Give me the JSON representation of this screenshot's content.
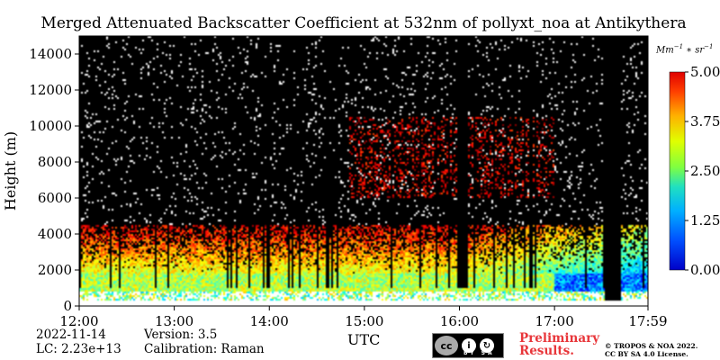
{
  "chart_data": {
    "type": "heatmap",
    "title": "Merged Attenuated Backscatter Coefficient at 532nm of pollyxt_noa at Antikythera",
    "xlabel": "UTC",
    "ylabel": "Height (m)",
    "x_ticks": [
      "12:00",
      "13:00",
      "14:00",
      "15:00",
      "16:00",
      "17:00",
      "17:59"
    ],
    "y_ticks": [
      "0",
      "2000",
      "4000",
      "6000",
      "8000",
      "10000",
      "12000",
      "14000"
    ],
    "xlim": [
      "12:00",
      "17:59"
    ],
    "ylim": [
      0,
      15000
    ],
    "colorbar": {
      "label": "Mm^-1 * sr^-1",
      "ticks": [
        "0.00",
        "1.25",
        "2.50",
        "3.75",
        "5.00"
      ],
      "range": [
        0,
        5
      ],
      "colormap": "jet"
    },
    "features": {
      "aerosol_layer_top_m": [
        3500,
        4500
      ],
      "boundary_layer_top_m": 1800,
      "near_ground_gap_m": 800,
      "elevated_layer_m": [
        6000,
        10500
      ],
      "noise": "sparse white speckle above 6000 m",
      "missing_data_interval": [
        "17:32",
        "17:42"
      ]
    }
  },
  "footer": {
    "date": "2022-11-14",
    "lc": "LC: 2.23e+13",
    "version": "Version: 3.5",
    "calibration": "Calibration: Raman",
    "utc": "UTC",
    "preliminary_line1": "Preliminary",
    "preliminary_line2": "Results.",
    "copyright_line1": "© TROPOS & NOA 2022.",
    "copyright_line2": "CC BY SA 4.0 License.",
    "cc_license": "BY SA"
  },
  "colors": {
    "background": "#000000",
    "accent_red": "#e8363a"
  }
}
